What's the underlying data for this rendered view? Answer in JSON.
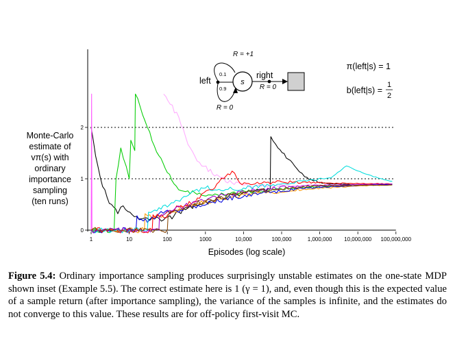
{
  "chart_data": {
    "type": "line",
    "title": "",
    "xlabel": "Episodes (log scale)",
    "ylabel": [
      "Monte-Carlo",
      "estimate of",
      "vπ(s) with",
      "ordinary",
      "importance",
      "sampling",
      "(ten runs)"
    ],
    "x_scale": "log",
    "xlim": [
      1,
      100000000
    ],
    "ylim": [
      0,
      2.65
    ],
    "x_ticks": [
      "1",
      "10",
      "100",
      "1000",
      "10,000",
      "100,000",
      "1,000,000",
      "10,000,000",
      "100,000,000"
    ],
    "y_ticks": [
      "0",
      "1",
      "2"
    ],
    "reference_lines": [
      1,
      2
    ],
    "legend": "none",
    "series": [
      {
        "color": "#000000",
        "points": [
          [
            1,
            2
          ],
          [
            1.5,
            1.25
          ],
          [
            2,
            0.85
          ],
          [
            3,
            0.52
          ],
          [
            5,
            0.32
          ],
          [
            6,
            0.45
          ],
          [
            8,
            0.4
          ],
          [
            12,
            0.3
          ],
          [
            20,
            0.22
          ],
          [
            40,
            0.24
          ],
          [
            80,
            0.2
          ],
          [
            150,
            0.28
          ],
          [
            300,
            0.4
          ],
          [
            700,
            0.5
          ],
          [
            1500,
            0.58
          ],
          [
            4000,
            0.66
          ],
          [
            10000,
            0.73
          ],
          [
            30000,
            0.78
          ],
          [
            50000,
            0.8
          ],
          [
            52000,
            1.82
          ],
          [
            80000,
            1.6
          ],
          [
            150000,
            1.38
          ],
          [
            250000,
            1.2
          ],
          [
            400000,
            1.04
          ],
          [
            700000,
            0.96
          ],
          [
            1500000,
            0.91
          ],
          [
            5000000,
            0.89
          ],
          [
            20000000,
            0.88
          ],
          [
            80000000,
            0.88
          ]
        ]
      },
      {
        "color": "#00cc00",
        "points": [
          [
            1,
            0
          ],
          [
            4,
            0
          ],
          [
            4.5,
            1.0
          ],
          [
            6,
            1.6
          ],
          [
            7,
            1.4
          ],
          [
            10,
            1.0
          ],
          [
            11,
            1.75
          ],
          [
            14,
            1.55
          ],
          [
            14.5,
            2.65
          ],
          [
            30,
            2.0
          ],
          [
            60,
            1.45
          ],
          [
            100,
            1.12
          ],
          [
            150,
            0.9
          ],
          [
            300,
            0.75
          ],
          [
            800,
            0.68
          ],
          [
            3000,
            0.7
          ],
          [
            20000,
            0.76
          ],
          [
            200000,
            0.82
          ],
          [
            2000000,
            0.86
          ],
          [
            80000000,
            0.88
          ]
        ]
      },
      {
        "color": "#ff55ff",
        "points": [
          [
            1,
            0
          ],
          [
            1.03,
            2.65
          ],
          [
            1.05,
            0
          ]
        ]
      },
      {
        "color": "#ffaaff",
        "points": [
          [
            80,
            2.65
          ],
          [
            200,
            2.2
          ],
          [
            400,
            1.6
          ],
          [
            800,
            1.25
          ],
          [
            2000,
            1.08
          ],
          [
            5000,
            0.92
          ],
          [
            20000,
            0.86
          ],
          [
            300000,
            0.87
          ],
          [
            3000000,
            0.88
          ],
          [
            80000000,
            0.9
          ]
        ]
      },
      {
        "color": "#ff9900",
        "points": [
          [
            1,
            0
          ],
          [
            25,
            0
          ],
          [
            26,
            0.32
          ],
          [
            40,
            0.22
          ],
          [
            80,
            0.3
          ],
          [
            200,
            0.4
          ],
          [
            600,
            0.52
          ],
          [
            3000,
            0.62
          ],
          [
            30000,
            0.72
          ],
          [
            500000,
            0.8
          ],
          [
            10000000,
            0.86
          ],
          [
            80000000,
            0.88
          ]
        ]
      },
      {
        "color": "#0000dd",
        "points": [
          [
            1,
            0
          ],
          [
            15,
            0
          ],
          [
            16,
            0.28
          ],
          [
            30,
            0.15
          ],
          [
            60,
            0.32
          ],
          [
            150,
            0.38
          ],
          [
            500,
            0.47
          ],
          [
            3000,
            0.6
          ],
          [
            30000,
            0.72
          ],
          [
            500000,
            0.82
          ],
          [
            10000000,
            0.87
          ],
          [
            80000000,
            0.89
          ]
        ]
      },
      {
        "color": "#ff0000",
        "points": [
          [
            1,
            0
          ],
          [
            40,
            0
          ],
          [
            42,
            0.3
          ],
          [
            80,
            0.25
          ],
          [
            200,
            0.45
          ],
          [
            700,
            0.62
          ],
          [
            2000,
            0.9
          ],
          [
            3000,
            1.0
          ],
          [
            5000,
            1.15
          ],
          [
            8000,
            0.92
          ],
          [
            20000,
            0.9
          ],
          [
            100000,
            0.94
          ],
          [
            1000000,
            0.92
          ],
          [
            80000000,
            0.9
          ]
        ]
      },
      {
        "color": "#00dddd",
        "points": [
          [
            1,
            0
          ],
          [
            30,
            0
          ],
          [
            32,
            0.35
          ],
          [
            100,
            0.45
          ],
          [
            400,
            0.72
          ],
          [
            1000,
            0.82
          ],
          [
            2000,
            0.78
          ],
          [
            10000,
            0.82
          ],
          [
            100000,
            0.9
          ],
          [
            2000000,
            1.02
          ],
          [
            5000000,
            1.25
          ],
          [
            15000000,
            1.1
          ],
          [
            50000000,
            0.98
          ],
          [
            80000000,
            0.95
          ]
        ]
      },
      {
        "color": "#9900cc",
        "points": [
          [
            1,
            0
          ],
          [
            60,
            0
          ],
          [
            62,
            0.25
          ],
          [
            150,
            0.4
          ],
          [
            600,
            0.55
          ],
          [
            3000,
            0.68
          ],
          [
            20000,
            0.78
          ],
          [
            200000,
            0.85
          ],
          [
            3000000,
            0.88
          ],
          [
            80000000,
            0.9
          ]
        ]
      },
      {
        "color": "#884400",
        "points": [
          [
            1,
            0
          ],
          [
            100,
            0
          ],
          [
            105,
            0.3
          ],
          [
            300,
            0.45
          ],
          [
            1200,
            0.6
          ],
          [
            8000,
            0.72
          ],
          [
            60000,
            0.8
          ],
          [
            800000,
            0.86
          ],
          [
            80000000,
            0.88
          ]
        ]
      }
    ]
  },
  "inset": {
    "arc_top_label": "R = +1",
    "arc_bottom_label": "R = 0",
    "left_label": "left",
    "right_label": "right",
    "right_reward_label": "R = 0",
    "prob_top": "0.1",
    "prob_bottom": "0.9",
    "state_label": "s",
    "pi_formula": "π(left|s) = 1",
    "b_formula_left": "b(left|s) =",
    "b_formula_num": "1",
    "b_formula_den": "2"
  },
  "caption": {
    "label": "Figure 5.4:",
    "text": "Ordinary importance sampling produces surprisingly unstable estimates on the one-state MDP shown inset (Example 5.5). The correct estimate here is 1 (γ = 1), and, even though this is the expected value of a sample return (after importance sampling), the variance of the samples is infinite, and the estimates do not converge to this value. These results are for off-policy first-visit MC."
  }
}
